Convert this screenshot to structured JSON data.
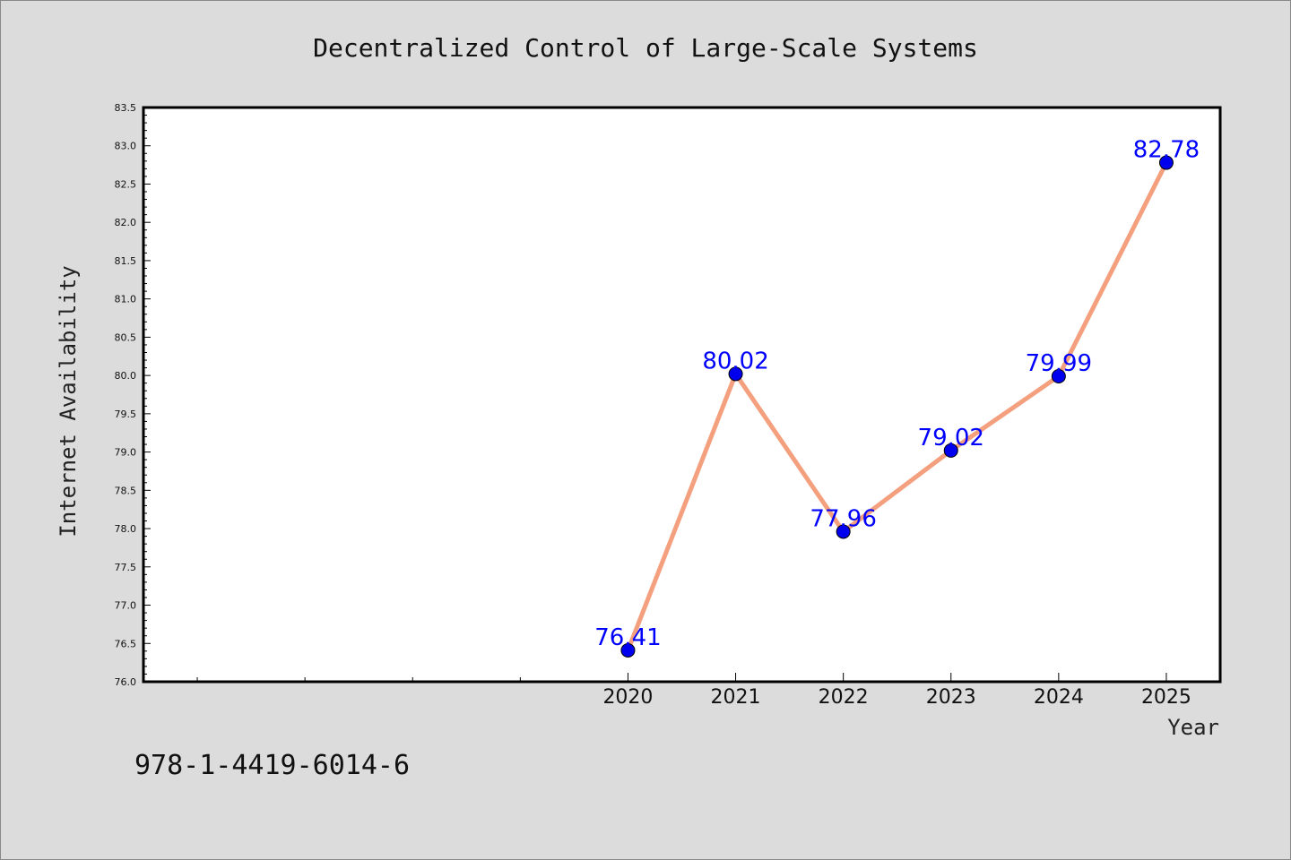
{
  "chart_data": {
    "type": "line",
    "title": "Decentralized Control of Large-Scale Systems",
    "xlabel": "Year",
    "ylabel": "Internet Availability",
    "categories": [
      "2020",
      "2021",
      "2022",
      "2023",
      "2024",
      "2025"
    ],
    "x": [
      2020,
      2021,
      2022,
      2023,
      2024,
      2025
    ],
    "series": [
      {
        "values": [
          76.41,
          80.02,
          77.96,
          79.02,
          79.99,
          82.78
        ],
        "labels": [
          "76.41",
          "80.02",
          "77.96",
          "79.02",
          "79.99",
          "82.78"
        ],
        "line_color": "#f4a07e",
        "marker_color": "#0000ee"
      }
    ],
    "ylim": [
      76.0,
      83.5
    ],
    "yticks": [
      "76.0",
      "76.5",
      "77.0",
      "77.5",
      "78.0",
      "78.5",
      "79.0",
      "79.5",
      "80.0",
      "80.5",
      "81.0",
      "81.5",
      "82.0",
      "82.5",
      "83.0",
      "83.5"
    ],
    "xlim": [
      2015.5,
      2025.5
    ],
    "grid": false,
    "data_label_color": "#0000ff"
  },
  "footer": {
    "isbn": "978-1-4419-6014-6"
  },
  "colors": {
    "background": "#dcdcdc",
    "plot_background": "#ffffff"
  }
}
